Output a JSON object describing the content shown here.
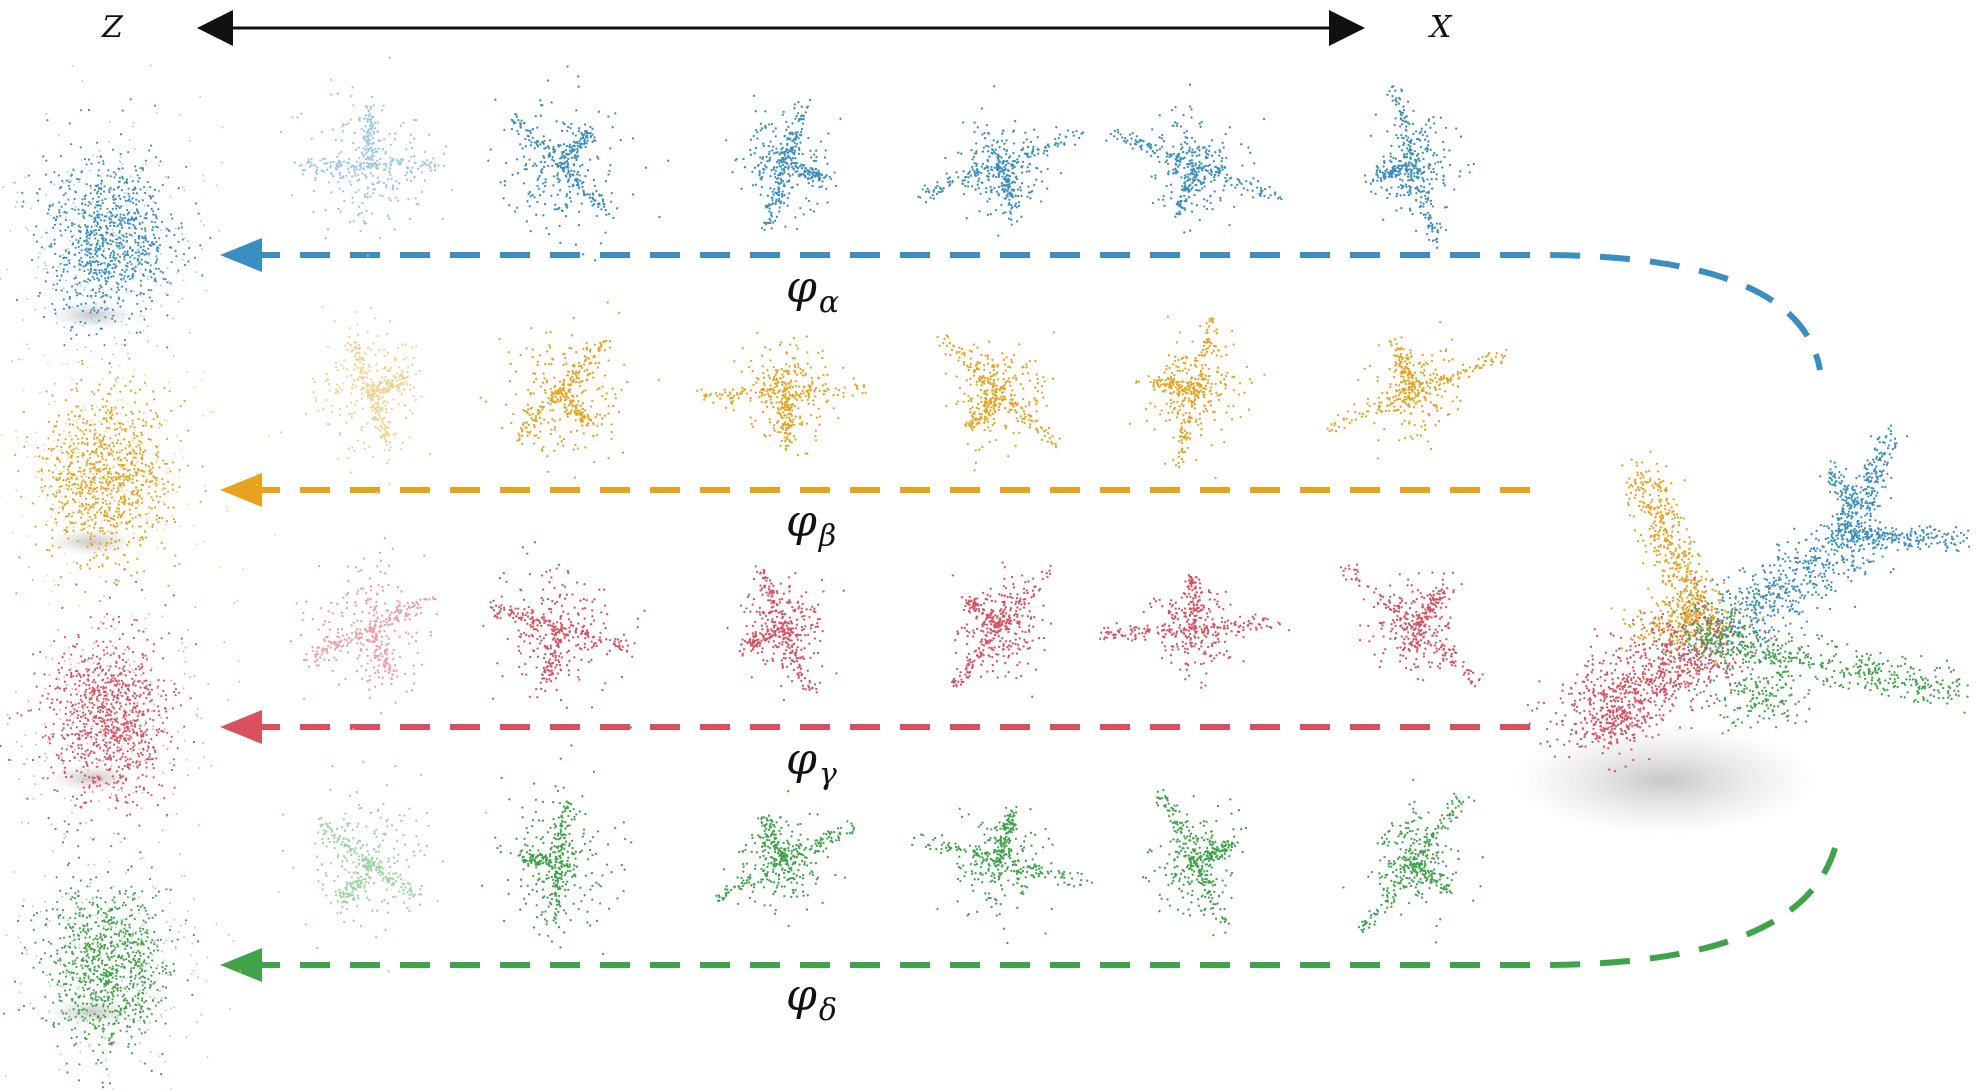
{
  "axis": {
    "left_label": "Z",
    "right_label": "X"
  },
  "rows": [
    {
      "symbol": "φ",
      "subscript": "α",
      "color": "#3a8ec0",
      "light": "#9cc8e4"
    },
    {
      "symbol": "φ",
      "subscript": "β",
      "color": "#e8a21e",
      "light": "#f3d08c"
    },
    {
      "symbol": "φ",
      "subscript": "γ",
      "color": "#d9505f",
      "light": "#ee9ca5"
    },
    {
      "symbol": "φ",
      "subscript": "δ",
      "color": "#3fa34a",
      "light": "#9ed3a3"
    }
  ]
}
